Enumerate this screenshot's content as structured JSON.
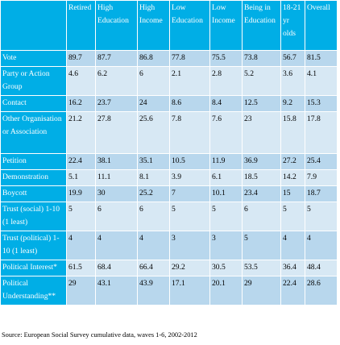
{
  "table": {
    "columns": [
      "Retired",
      "High Education",
      "High Income",
      "Low Education",
      "Low Income",
      "Being in Education",
      "18-21 yr olds",
      "Overall"
    ],
    "rows": [
      {
        "label": "Vote",
        "values": [
          "89.7",
          "87.7",
          "86.8",
          "77.8",
          "75.5",
          "73.8",
          "56.7",
          "81.5"
        ]
      },
      {
        "label": "Party or Action Group",
        "values": [
          "4.6",
          "6.2",
          "6",
          "2.1",
          "2.8",
          "5.2",
          "3.6",
          "4.1"
        ]
      },
      {
        "label": "Contact",
        "values": [
          "16.2",
          "23.7",
          "24",
          "8.6",
          "8.4",
          "12.5",
          "9.2",
          "15.3"
        ]
      },
      {
        "label": "Other Organisation or Association",
        "values": [
          "21.2",
          "27.8",
          "25.6",
          "7.8",
          "7.6",
          "23",
          "15.8",
          "17.8"
        ]
      },
      {
        "label": "Petition",
        "values": [
          "22.4",
          "38.1",
          "35.1",
          "10.5",
          "11.9",
          "36.9",
          "27.2",
          "25.4"
        ]
      },
      {
        "label": "Demonstration",
        "values": [
          "5.1",
          "11.1",
          "8.1",
          "3.9",
          "6.1",
          "18.5",
          "14.2",
          "7.9"
        ]
      },
      {
        "label": "Boycott",
        "values": [
          "19.9",
          "30",
          "25.2",
          "7",
          "10.1",
          "23.4",
          "15",
          "18.7"
        ]
      },
      {
        "label": "Trust (social) 1-10 (1 least)",
        "values": [
          "5",
          "6",
          "6",
          "5",
          "5",
          "6",
          "5",
          "5"
        ]
      },
      {
        "label": "Trust (political) 1-10 (1 least)",
        "values": [
          "4",
          "4",
          "4",
          "3",
          "3",
          "5",
          "4",
          "4"
        ]
      },
      {
        "label": "Political Interest*",
        "values": [
          "61.5",
          "68.4",
          "66.4",
          "29.2",
          "30.5",
          "53.5",
          "36.4",
          "48.4"
        ]
      },
      {
        "label": "Political Understanding**",
        "values": [
          "29",
          "43.1",
          "43.9",
          "17.1",
          "20.1",
          "29",
          "22.4",
          "28.6"
        ]
      }
    ]
  },
  "source": "Source: European Social Survey cumulative data, waves 1-6, 2002-2012",
  "colors": {
    "header": "#00aee6",
    "row_light": "#d7e8f4",
    "row_dark": "#b8d7ed"
  }
}
